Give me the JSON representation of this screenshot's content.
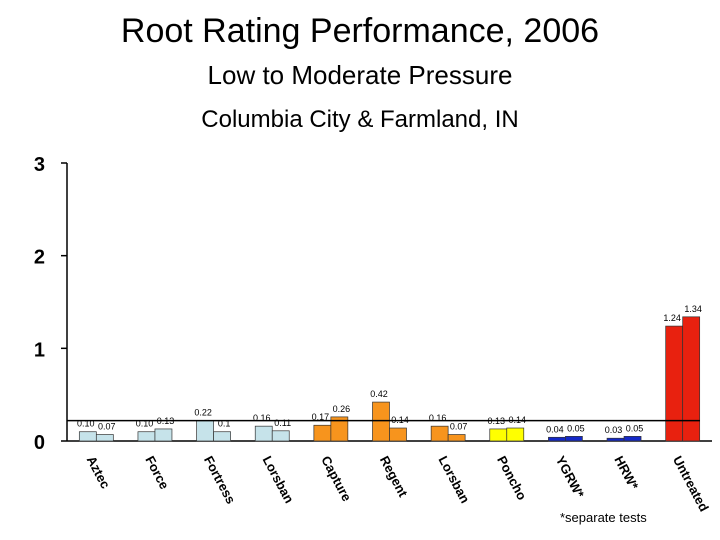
{
  "chart_data": {
    "type": "bar",
    "title": "Root Rating Performance, 2006",
    "subtitle": "Low to Moderate Pressure",
    "subtitle2": "Columbia City & Farmland, IN",
    "xlabel": "",
    "ylabel": "",
    "ylim": [
      0,
      3
    ],
    "yticks": [
      "0",
      "1",
      "2",
      "3"
    ],
    "grid": false,
    "reference_line": 0.22,
    "footnote": "*separate tests",
    "categories": [
      {
        "label": "Aztec",
        "color": "#c6e3ea",
        "bars": [
          {
            "value": 0.1,
            "text": "0.10"
          },
          {
            "value": 0.07,
            "text": "0.07"
          }
        ]
      },
      {
        "label": "Force",
        "color": "#c6e3ea",
        "bars": [
          {
            "value": 0.1,
            "text": "0.10"
          },
          {
            "value": 0.13,
            "text": "0.13"
          }
        ]
      },
      {
        "label": "Fortress",
        "color": "#c6e3ea",
        "bars": [
          {
            "value": 0.22,
            "text": "0.22"
          },
          {
            "value": 0.1,
            "text": "0.1"
          }
        ]
      },
      {
        "label": "Lorsban",
        "color": "#c6e3ea",
        "bars": [
          {
            "value": 0.16,
            "text": "0.16"
          },
          {
            "value": 0.11,
            "text": "0.11"
          }
        ]
      },
      {
        "label": "Capture",
        "color": "#f7941d",
        "bars": [
          {
            "value": 0.17,
            "text": "0.17"
          },
          {
            "value": 0.26,
            "text": "0.26"
          }
        ]
      },
      {
        "label": "Regent",
        "color": "#f7941d",
        "bars": [
          {
            "value": 0.42,
            "text": "0.42"
          },
          {
            "value": 0.14,
            "text": "0.14"
          }
        ]
      },
      {
        "label": "Lorsban",
        "color": "#f7941d",
        "bars": [
          {
            "value": 0.16,
            "text": "0.16"
          },
          {
            "value": 0.07,
            "text": "0.07"
          }
        ]
      },
      {
        "label": "Poncho",
        "color": "#ffff00",
        "bars": [
          {
            "value": 0.13,
            "text": "0.13"
          },
          {
            "value": 0.14,
            "text": "0.14"
          }
        ]
      },
      {
        "label": "YGRW*",
        "color": "#1428c8",
        "bars": [
          {
            "value": 0.04,
            "text": "0.04"
          },
          {
            "value": 0.05,
            "text": "0.05"
          }
        ]
      },
      {
        "label": "HRW*",
        "color": "#1428c8",
        "bars": [
          {
            "value": 0.03,
            "text": "0.03"
          },
          {
            "value": 0.05,
            "text": "0.05"
          }
        ]
      },
      {
        "label": "Untreated",
        "color": "#e8210f",
        "bars": [
          {
            "value": 1.24,
            "text": "1.24"
          },
          {
            "value": 1.34,
            "text": "1.34"
          }
        ]
      }
    ]
  }
}
